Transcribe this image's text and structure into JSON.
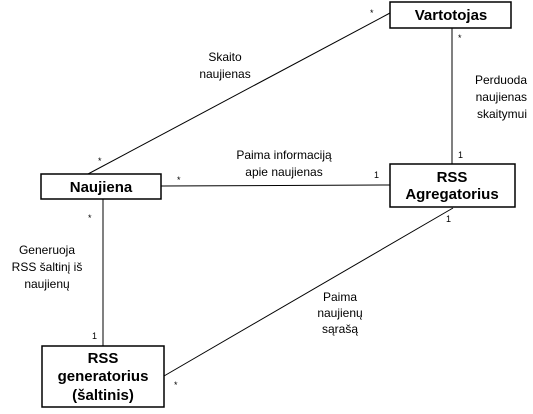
{
  "nodes": {
    "vartotojas": {
      "label": "Vartotojas"
    },
    "naujiena": {
      "label": "Naujiena"
    },
    "agregatorius": {
      "line1": "RSS",
      "line2": "Agregatorius"
    },
    "generatorius": {
      "line1": "RSS",
      "line2": "generatorius",
      "line3": "(šaltinis)"
    }
  },
  "edges": {
    "skaito": {
      "label_lines": [
        "Skaito",
        "naujienas"
      ],
      "mult_from": "*",
      "mult_to": "*"
    },
    "perduoda": {
      "label_lines": [
        "Perduoda",
        "naujienas",
        "skaitymui"
      ],
      "mult_from": "*",
      "mult_to": "1"
    },
    "paima_info": {
      "label_lines": [
        "Paima informaciją",
        "apie naujienas"
      ],
      "mult_from": "*",
      "mult_to": "1"
    },
    "generuoja": {
      "label_lines": [
        "Generuoja",
        "RSS šaltinį iš",
        "naujienų"
      ],
      "mult_from": "*",
      "mult_to": "1"
    },
    "paima_sarasa": {
      "label_lines": [
        "Paima",
        "naujienų",
        "sąrašą"
      ],
      "mult_from": "1",
      "mult_to": "*"
    }
  }
}
